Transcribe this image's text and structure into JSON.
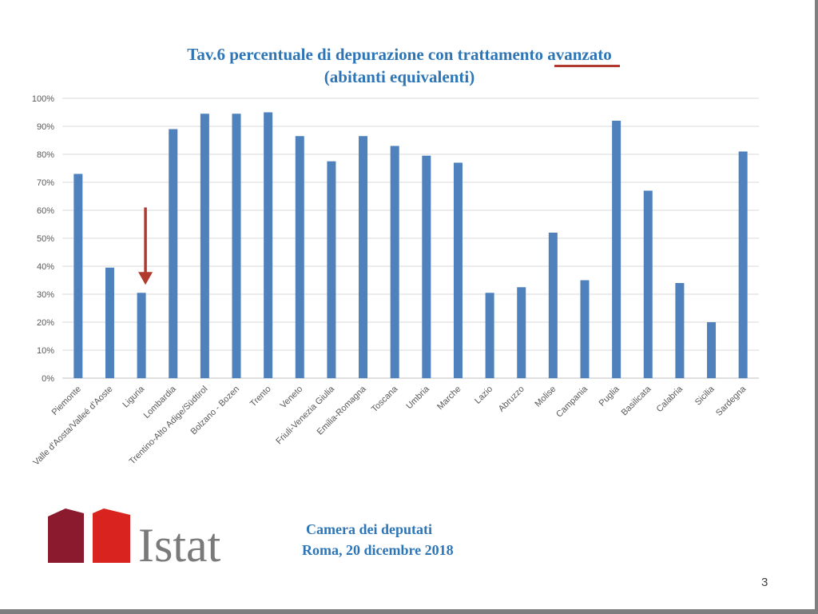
{
  "slide": {
    "title_line1_prefix": "Tav.6 percentuale  di depurazione  con trattamento ",
    "title_line1_highlight": "avanzato",
    "title_line2": "(abitanti  equivalenti)",
    "footer_line1": "Camera dei deputati",
    "footer_line2": "Roma, 20 dicembre 2018",
    "page_number": "3",
    "logo_text": "Istat",
    "colors": {
      "title": "#2e75b6",
      "bar": "#4f81bd",
      "arrow": "#b03a2e",
      "logo_dark_red": "#8b1a2f",
      "logo_red": "#d8231f",
      "logo_text": "#7a7a7a"
    }
  },
  "chart_data": {
    "type": "bar",
    "title": "Tav.6 percentuale di depurazione con trattamento avanzato (abitanti equivalenti)",
    "categories": [
      "Piemonte",
      "Valle d'Aosta/Valleé d'Aoste",
      "Liguria",
      "Lombardia",
      "Trentino-Alto Adige/Südtirol",
      "Bolzano - Bozen",
      "Trento",
      "Veneto",
      "Friuli-Venezia Giulia",
      "Emilia-Romagna",
      "Toscana",
      "Umbria",
      "Marche",
      "Lazio",
      "Abruzzo",
      "Molise",
      "Campania",
      "Puglia",
      "Basilicata",
      "Calabria",
      "Sicilia",
      "Sardegna"
    ],
    "values": [
      73,
      39.5,
      30.5,
      89,
      94.5,
      94.5,
      95,
      86.5,
      77.5,
      86.5,
      83,
      79.5,
      77,
      30.5,
      32.5,
      52,
      35,
      92,
      67,
      34,
      20,
      81
    ],
    "ylim": [
      0,
      100
    ],
    "yticks": [
      "0%",
      "10%",
      "20%",
      "30%",
      "40%",
      "50%",
      "60%",
      "70%",
      "80%",
      "90%",
      "100%"
    ],
    "grid": true,
    "legend": "none",
    "highlight_category": "Liguria"
  }
}
